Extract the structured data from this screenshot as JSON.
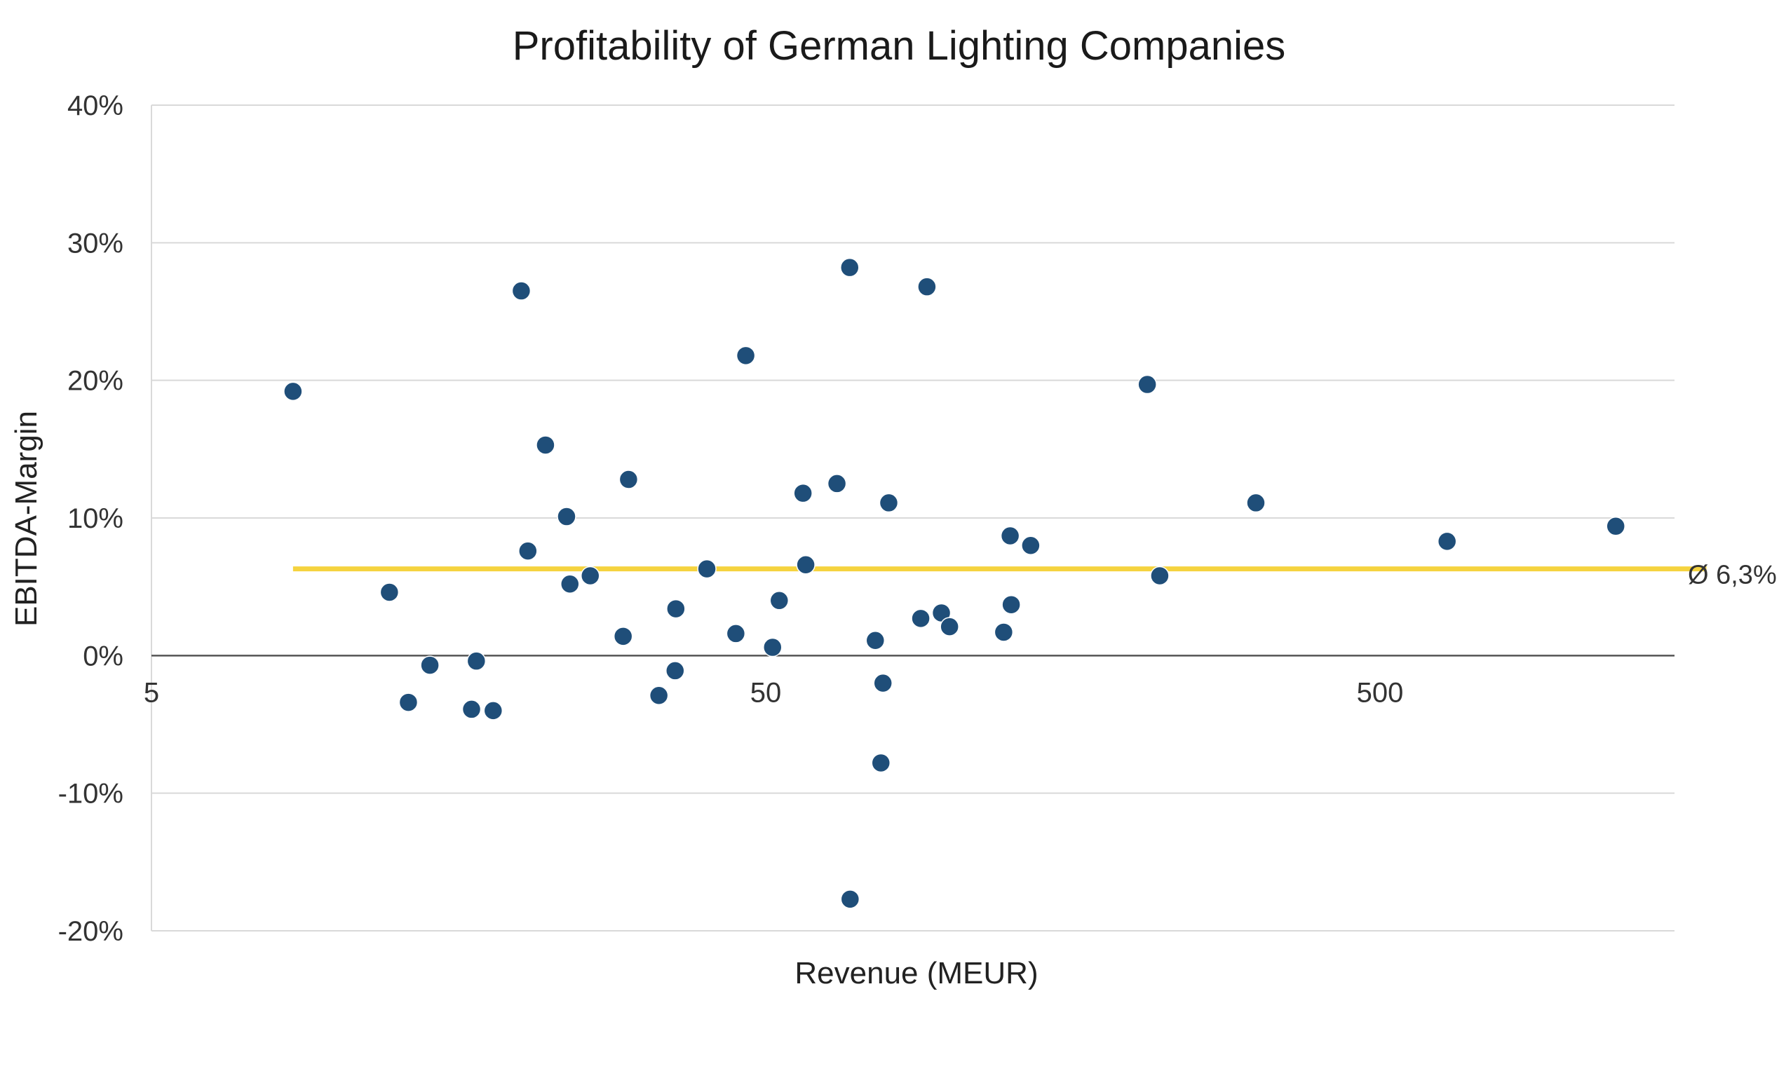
{
  "chart_data": {
    "type": "scatter",
    "title": "Profitability of German Lighting Companies",
    "xlabel": "Revenue (MEUR)",
    "ylabel": "EBITDA-Margin",
    "x_scale": "log",
    "xlim": [
      5,
      1900
    ],
    "ylim": [
      -0.2,
      0.4
    ],
    "x_ticks": [
      {
        "value": 5,
        "label": "5"
      },
      {
        "value": 50,
        "label": "50"
      },
      {
        "value": 500,
        "label": "500"
      }
    ],
    "y_ticks": [
      {
        "value": 0.4,
        "label": "40%"
      },
      {
        "value": 0.3,
        "label": "30%"
      },
      {
        "value": 0.2,
        "label": "20%"
      },
      {
        "value": 0.1,
        "label": "10%"
      },
      {
        "value": 0.0,
        "label": "0%"
      },
      {
        "value": -0.1,
        "label": "-10%"
      },
      {
        "value": -0.2,
        "label": "-20%"
      }
    ],
    "grid": true,
    "point_color": "#1f4e79",
    "reference_line": {
      "value": 0.063,
      "label": "Ø 6,3%",
      "color": "#f5d33f",
      "x_range": [
        8.5,
        1700
      ]
    },
    "points": [
      {
        "x": 8.5,
        "y": 0.192
      },
      {
        "x": 12.2,
        "y": 0.046
      },
      {
        "x": 13.1,
        "y": -0.034
      },
      {
        "x": 14.2,
        "y": -0.007
      },
      {
        "x": 16.6,
        "y": -0.039
      },
      {
        "x": 16.9,
        "y": -0.004
      },
      {
        "x": 18.0,
        "y": -0.04
      },
      {
        "x": 20.0,
        "y": 0.265
      },
      {
        "x": 20.5,
        "y": 0.076
      },
      {
        "x": 21.9,
        "y": 0.153
      },
      {
        "x": 23.7,
        "y": 0.101
      },
      {
        "x": 24.0,
        "y": 0.052
      },
      {
        "x": 25.9,
        "y": 0.058
      },
      {
        "x": 29.3,
        "y": 0.014
      },
      {
        "x": 29.9,
        "y": 0.128
      },
      {
        "x": 33.5,
        "y": -0.029
      },
      {
        "x": 35.6,
        "y": -0.011
      },
      {
        "x": 35.7,
        "y": 0.034
      },
      {
        "x": 40.1,
        "y": 0.063
      },
      {
        "x": 44.7,
        "y": 0.016
      },
      {
        "x": 46.4,
        "y": 0.218
      },
      {
        "x": 51.3,
        "y": 0.006
      },
      {
        "x": 52.6,
        "y": 0.04
      },
      {
        "x": 57.5,
        "y": 0.118
      },
      {
        "x": 58.1,
        "y": 0.066
      },
      {
        "x": 65.3,
        "y": 0.125
      },
      {
        "x": 68.5,
        "y": 0.282
      },
      {
        "x": 68.6,
        "y": -0.177
      },
      {
        "x": 75.4,
        "y": 0.011
      },
      {
        "x": 77.0,
        "y": -0.078
      },
      {
        "x": 77.6,
        "y": -0.02
      },
      {
        "x": 79.3,
        "y": 0.111
      },
      {
        "x": 89.4,
        "y": 0.027
      },
      {
        "x": 91.5,
        "y": 0.268
      },
      {
        "x": 96.6,
        "y": 0.031
      },
      {
        "x": 99.6,
        "y": 0.021
      },
      {
        "x": 122,
        "y": 0.017
      },
      {
        "x": 125,
        "y": 0.087
      },
      {
        "x": 125.5,
        "y": 0.037
      },
      {
        "x": 135,
        "y": 0.08
      },
      {
        "x": 209,
        "y": 0.197
      },
      {
        "x": 219,
        "y": 0.058
      },
      {
        "x": 314,
        "y": 0.111
      },
      {
        "x": 643,
        "y": 0.083
      },
      {
        "x": 1210,
        "y": 0.094
      }
    ]
  }
}
